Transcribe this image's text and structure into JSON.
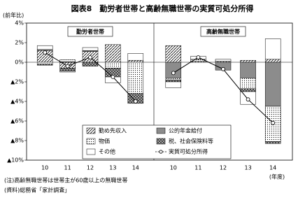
{
  "chart_data": {
    "type": "bar",
    "stacked": true,
    "title": "図表8　勤労者世帯と高齢無職世帯の実質可処分所得",
    "y_label": "(前年比)",
    "x_unit": "(年度)",
    "panels": [
      "勤労者世帯",
      "高齢無職世帯"
    ],
    "categories": [
      "10",
      "11",
      "12",
      "13",
      "14",
      "10",
      "11",
      "12",
      "13",
      "14"
    ],
    "ylim": [
      -10,
      4
    ],
    "yticks": [
      {
        "value": 4,
        "label": "4%"
      },
      {
        "value": 2,
        "label": "2%"
      },
      {
        "value": 0,
        "label": "0%"
      },
      {
        "value": -2,
        "label": "▲2%"
      },
      {
        "value": -4,
        "label": "▲4%"
      },
      {
        "value": -6,
        "label": "▲6%"
      },
      {
        "value": -8,
        "label": "▲8%"
      },
      {
        "value": -10,
        "label": "▲10%"
      }
    ],
    "series": [
      {
        "name": "勤め先収入",
        "color": "#ffffff",
        "pattern": "hatch",
        "values": [
          1.2,
          -0.6,
          1.1,
          1.8,
          0.2,
          1.7,
          0.1,
          0.1,
          0.2,
          0.3
        ]
      },
      {
        "name": "公的年金給付",
        "color": "#8c8c8c",
        "pattern": "solid",
        "values": [
          0.1,
          0.05,
          0.1,
          0.0,
          0.0,
          -1.6,
          0.0,
          -0.8,
          -1.6,
          -4.5
        ]
      },
      {
        "name": "物価",
        "color": "#ffffff",
        "pattern": "dots",
        "values": [
          -0.2,
          0.2,
          0.0,
          -0.6,
          -3.2,
          -0.2,
          0.2,
          0.0,
          -1.1,
          -3.6
        ]
      },
      {
        "name": "税、社会保険料等",
        "color": "#444444",
        "pattern": "cross",
        "values": [
          -0.1,
          -0.3,
          -0.4,
          -0.9,
          -1.0,
          -0.2,
          0.0,
          0.0,
          -0.3,
          -0.2
        ]
      },
      {
        "name": "その他",
        "color": "#ffffff",
        "pattern": "solid",
        "values": [
          0.4,
          -0.1,
          0.3,
          -0.6,
          0.7,
          -0.6,
          0.3,
          0.2,
          -1.3,
          2.1
        ]
      },
      {
        "name": "実質可処分所得",
        "color": "#000000",
        "type": "line",
        "values": [
          1.0,
          -0.4,
          0.5,
          -1.5,
          -4.0,
          -1.1,
          0.5,
          -0.7,
          -3.8,
          -6.2
        ]
      }
    ],
    "notes": [
      "(注)高齢無職世帯は世帯主が60歳以上の無職世帯",
      "(資料)総務省「家計調査」"
    ]
  }
}
